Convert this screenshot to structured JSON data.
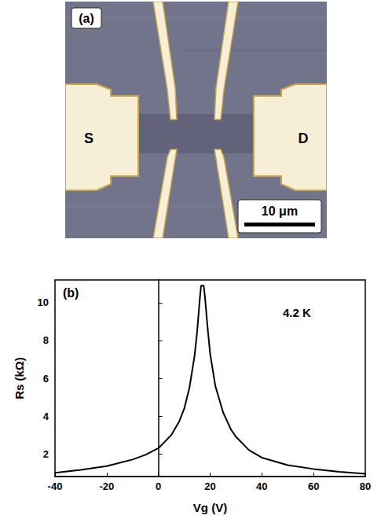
{
  "micrograph": {
    "label": "(a)",
    "source_label": "S",
    "drain_label": "D",
    "scale_bar": "10 μm"
  },
  "chart_data": {
    "type": "line",
    "panel_label": "(b)",
    "annotations": [
      "4.2 K"
    ],
    "x_label": "Vg (V)",
    "y_label": "Rs (kΩ)",
    "x": [
      -40,
      -30,
      -20,
      -10,
      -5,
      0,
      5,
      8,
      10,
      12,
      14,
      15,
      16,
      16.5,
      17.5,
      18,
      19,
      20,
      22,
      25,
      28,
      30,
      35,
      40,
      50,
      60,
      70,
      80
    ],
    "series": [
      {
        "name": "Rs",
        "color": "#000000",
        "values": [
          1.0,
          1.15,
          1.35,
          1.7,
          1.95,
          2.3,
          3.0,
          3.7,
          4.4,
          5.5,
          7.2,
          8.5,
          10.2,
          10.9,
          10.9,
          10.3,
          8.7,
          7.3,
          5.6,
          4.2,
          3.3,
          2.9,
          2.2,
          1.8,
          1.4,
          1.2,
          1.05,
          0.95
        ]
      }
    ],
    "xlim": [
      -40,
      80
    ],
    "xticks": [
      -40,
      -20,
      0,
      20,
      40,
      60,
      80
    ],
    "ylim": [
      0.8,
      11.2
    ],
    "yticks": [
      2,
      4,
      6,
      8,
      10
    ],
    "grid": false
  }
}
